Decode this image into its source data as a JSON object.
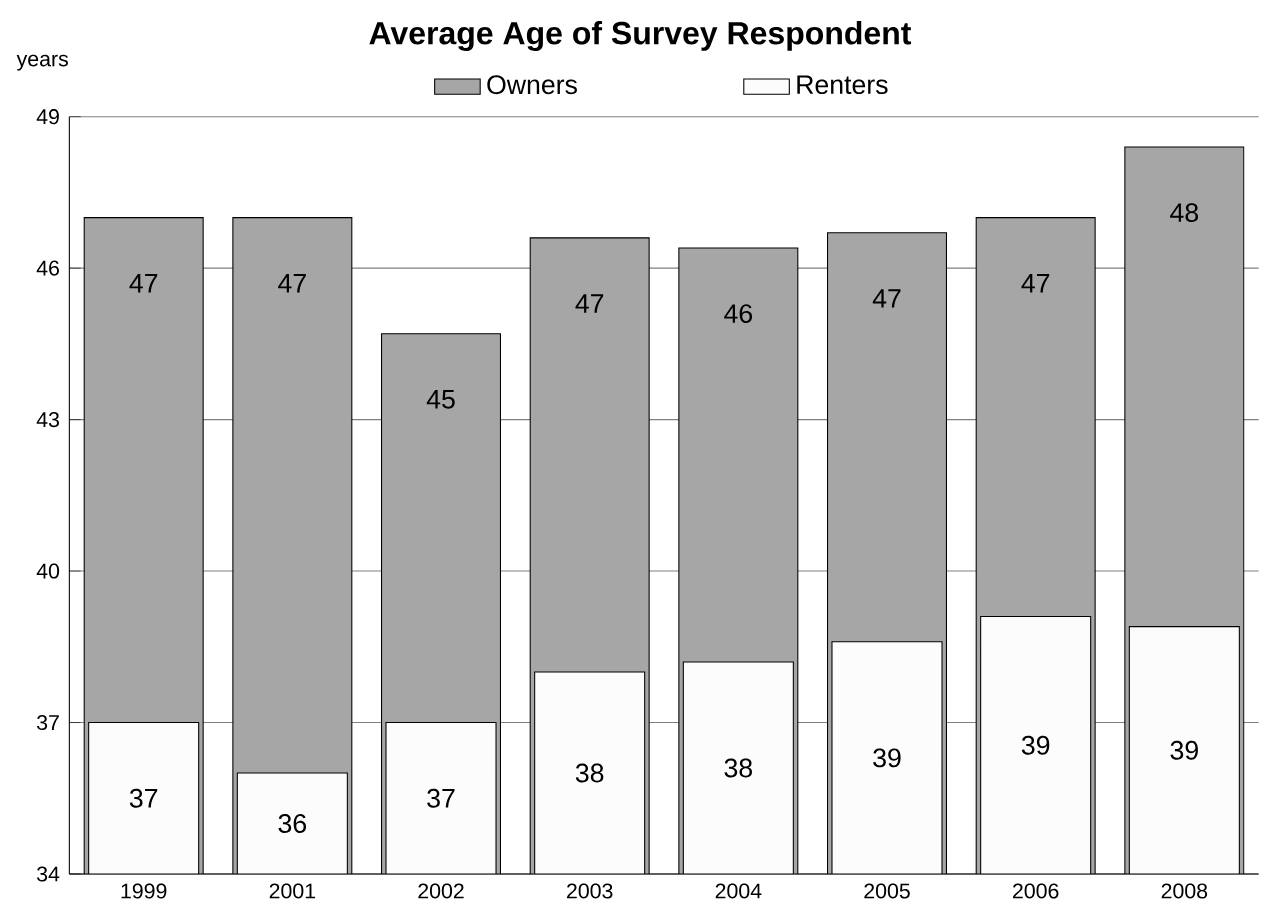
{
  "chart_data": {
    "type": "bar",
    "title": "Average Age of Survey Respondent",
    "ylabel": "years",
    "categories": [
      "1999",
      "2001",
      "2002",
      "2003",
      "2004",
      "2005",
      "2006",
      "2008"
    ],
    "series": [
      {
        "name": "Owners",
        "color": "#a6a6a6",
        "values": [
          47,
          47,
          44.7,
          46.6,
          46.4,
          46.7,
          47,
          48.4
        ],
        "value_labels": [
          "47",
          "47",
          "45",
          "47",
          "46",
          "47",
          "47",
          "48"
        ]
      },
      {
        "name": "Renters",
        "color": "#fcfcfc",
        "values": [
          37,
          36,
          37,
          38,
          38.2,
          38.6,
          39.1,
          38.9
        ],
        "value_labels": [
          "37",
          "36",
          "37",
          "38",
          "38",
          "39",
          "39",
          "39"
        ]
      }
    ],
    "ylim": [
      34,
      49
    ],
    "yticks": [
      34,
      37,
      40,
      43,
      46,
      49
    ],
    "grid": "y",
    "legend": "top"
  }
}
